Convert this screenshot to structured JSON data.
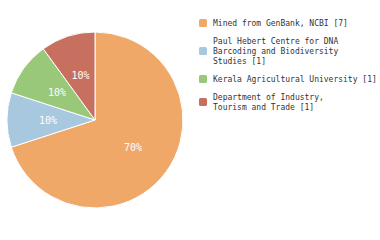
{
  "chart_data": {
    "type": "pie",
    "categories": [
      "Mined from GenBank, NCBI [7]",
      "Paul Hebert Centre for DNA\nBarcoding and Biodiversity\nStudies [1]",
      "Kerala Agricultural University [1]",
      "Department of Industry,\nTourism and Trade [1]"
    ],
    "values": [
      70,
      10,
      10,
      10
    ],
    "value_labels": [
      "70%",
      "10%",
      "10%",
      "10%"
    ],
    "colors": [
      "#F0A868",
      "#A8C8E0",
      "#98C878",
      "#C87060"
    ],
    "data_labels": true,
    "legend": "right"
  }
}
